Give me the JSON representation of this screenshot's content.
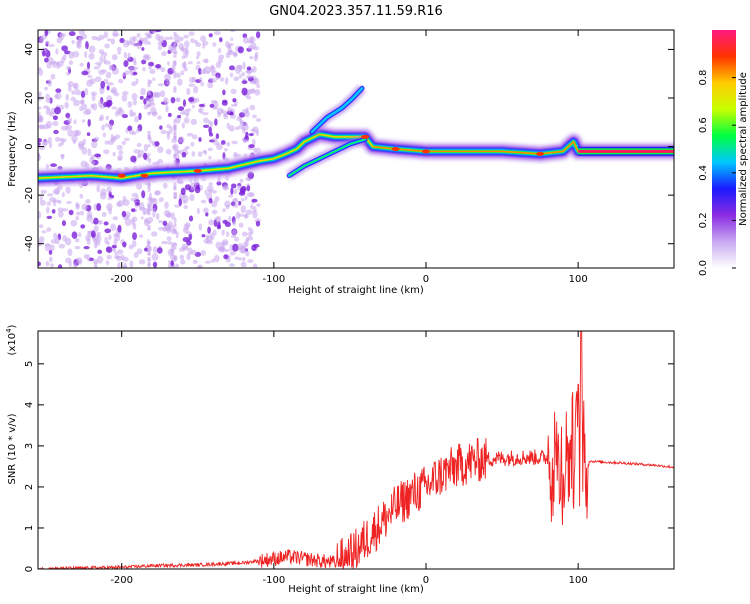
{
  "title": "GN04.2023.357.11.59.R16",
  "chart_data": [
    {
      "type": "heatmap",
      "xlabel": "Height of straight line (km)",
      "ylabel": "Frequency (Hz)",
      "xlim": [
        -255,
        163
      ],
      "ylim": [
        -50,
        48
      ],
      "xticks": [
        -200,
        -100,
        0,
        100
      ],
      "yticks": [
        -40,
        -20,
        0,
        20,
        40
      ],
      "ticks_inside": true,
      "colorbar": {
        "label": "Normalized spectral amplitude",
        "range": [
          0,
          1
        ],
        "ticks": [
          0.0,
          0.2,
          0.4,
          0.6,
          0.8
        ],
        "tick_labels": [
          "0.0",
          "0.2",
          "0.4",
          "0.6",
          "0.8"
        ],
        "colormap": [
          "#ffffff",
          "#c8a8f0",
          "#8a2be2",
          "#1a1aff",
          "#00c8ff",
          "#00ff40",
          "#c8ff00",
          "#ffcc00",
          "#ff3300",
          "#ff1a80"
        ]
      },
      "ridge": {
        "description_points": [
          [
            -255,
            -13
          ],
          [
            -220,
            -12
          ],
          [
            -200,
            -13
          ],
          [
            -180,
            -11
          ],
          [
            -150,
            -10
          ],
          [
            -130,
            -9
          ],
          [
            -110,
            -6
          ],
          [
            -100,
            -5
          ],
          [
            -92,
            -3
          ],
          [
            -85,
            -1
          ],
          [
            -80,
            2
          ],
          [
            -70,
            5
          ],
          [
            -60,
            4
          ],
          [
            -50,
            4
          ],
          [
            -40,
            4
          ],
          [
            -35,
            0
          ],
          [
            -20,
            -1
          ],
          [
            0,
            -2
          ],
          [
            20,
            -2
          ],
          [
            50,
            -2
          ],
          [
            75,
            -3
          ],
          [
            90,
            -2
          ],
          [
            97,
            2
          ],
          [
            100,
            -2
          ],
          [
            163,
            -2
          ]
        ],
        "lower_branch": [
          [
            -90,
            -12
          ],
          [
            -80,
            -8
          ],
          [
            -70,
            -5
          ],
          [
            -60,
            -2
          ],
          [
            -50,
            1
          ],
          [
            -40,
            3
          ]
        ],
        "upper_branch": [
          [
            -75,
            6
          ],
          [
            -65,
            12
          ],
          [
            -55,
            16
          ],
          [
            -48,
            20
          ],
          [
            -42,
            24
          ]
        ]
      }
    },
    {
      "type": "line",
      "xlabel": "Height of straight line (km)",
      "ylabel": "SNR (10 * v/v)",
      "y_multiplier_label": "(x10",
      "y_multiplier_exp": "4",
      "y_multiplier_close": ")",
      "xlim": [
        -255,
        163
      ],
      "ylim": [
        0,
        5.8
      ],
      "xticks": [
        -200,
        -100,
        0,
        100
      ],
      "yticks": [
        0,
        1,
        2,
        3,
        4,
        5
      ],
      "series": [
        {
          "color": "#ee2222",
          "x": [
            -255,
            -230,
            -200,
            -180,
            -150,
            -120,
            -100,
            -90,
            -80,
            -70,
            -60,
            -50,
            -40,
            -30,
            -20,
            -10,
            0,
            10,
            20,
            30,
            40,
            50,
            60,
            70,
            80,
            90,
            95,
            100,
            105,
            110,
            130,
            150,
            163
          ],
          "y": [
            0.0,
            0.02,
            0.04,
            0.08,
            0.1,
            0.15,
            0.25,
            0.3,
            0.25,
            0.2,
            0.15,
            0.3,
            0.7,
            1.1,
            1.5,
            1.8,
            2.0,
            2.3,
            2.5,
            2.62,
            2.68,
            2.7,
            2.72,
            2.72,
            2.72,
            2.7,
            3.0,
            3.2,
            2.65,
            2.62,
            2.58,
            2.53,
            2.48
          ]
        }
      ]
    }
  ]
}
